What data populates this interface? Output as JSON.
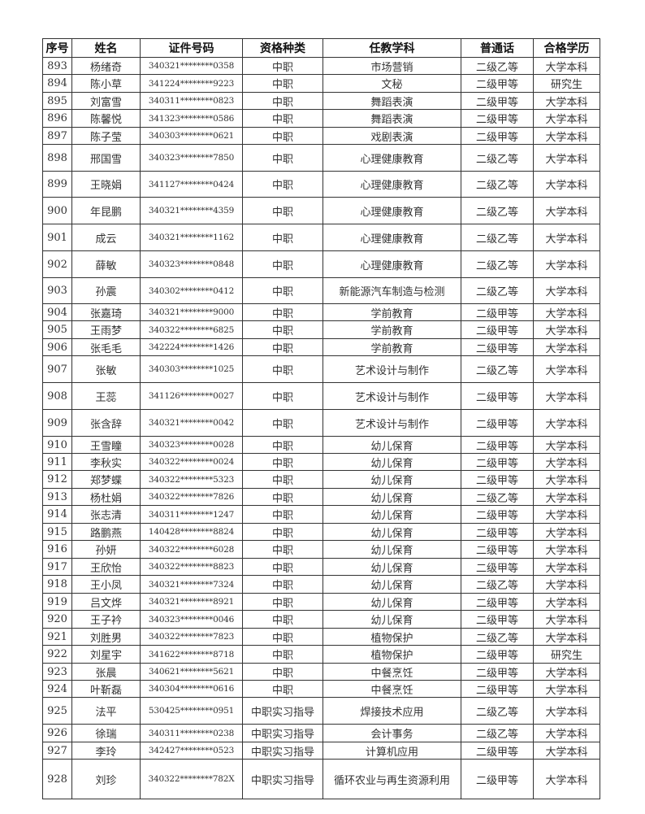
{
  "headers": [
    "序号",
    "姓名",
    "证件号码",
    "资格种类",
    "任教学科",
    "普通话",
    "合格学历"
  ],
  "rows": [
    [
      "893",
      "杨绪奇",
      "340321********0358",
      "中职",
      "市场营销",
      "二级乙等",
      "大学本科"
    ],
    [
      "894",
      "陈小草",
      "341224********9223",
      "中职",
      "文秘",
      "二级甲等",
      "研究生"
    ],
    [
      "895",
      "刘富雪",
      "340311********0823",
      "中职",
      "舞蹈表演",
      "二级甲等",
      "大学本科"
    ],
    [
      "896",
      "陈馨悦",
      "341323********0586",
      "中职",
      "舞蹈表演",
      "二级甲等",
      "大学本科"
    ],
    [
      "897",
      "陈子莹",
      "340303********0621",
      "中职",
      "戏剧表演",
      "二级甲等",
      "大学本科"
    ],
    [
      "898",
      "邢国雪",
      "340323********7850",
      "中职",
      "心理健康教育",
      "二级乙等",
      "大学本科"
    ],
    [
      "899",
      "王晓娟",
      "341127********0424",
      "中职",
      "心理健康教育",
      "二级乙等",
      "大学本科"
    ],
    [
      "900",
      "年昆鹏",
      "340321********4359",
      "中职",
      "心理健康教育",
      "二级乙等",
      "大学本科"
    ],
    [
      "901",
      "成云",
      "340321********1162",
      "中职",
      "心理健康教育",
      "二级乙等",
      "大学本科"
    ],
    [
      "902",
      "薛敏",
      "340323********0848",
      "中职",
      "心理健康教育",
      "二级乙等",
      "大学本科"
    ],
    [
      "903",
      "孙震",
      "340302********0412",
      "中职",
      "新能源汽车制造与检测",
      "二级乙等",
      "大学本科"
    ],
    [
      "904",
      "张嘉琦",
      "340321********9000",
      "中职",
      "学前教育",
      "二级甲等",
      "大学本科"
    ],
    [
      "905",
      "王雨梦",
      "340322********6825",
      "中职",
      "学前教育",
      "二级甲等",
      "大学本科"
    ],
    [
      "906",
      "张毛毛",
      "342224********1426",
      "中职",
      "学前教育",
      "二级甲等",
      "大学本科"
    ],
    [
      "907",
      "张敏",
      "340303********1025",
      "中职",
      "艺术设计与制作",
      "二级乙等",
      "大学本科"
    ],
    [
      "908",
      "王蕊",
      "341126********0027",
      "中职",
      "艺术设计与制作",
      "二级甲等",
      "大学本科"
    ],
    [
      "909",
      "张含辞",
      "340321********0042",
      "中职",
      "艺术设计与制作",
      "二级甲等",
      "大学本科"
    ],
    [
      "910",
      "王雪瞳",
      "340323********0028",
      "中职",
      "幼儿保育",
      "二级甲等",
      "大学本科"
    ],
    [
      "911",
      "李秋实",
      "340322********0024",
      "中职",
      "幼儿保育",
      "二级甲等",
      "大学本科"
    ],
    [
      "912",
      "郑梦蝶",
      "340322********5323",
      "中职",
      "幼儿保育",
      "二级甲等",
      "大学本科"
    ],
    [
      "913",
      "杨杜娟",
      "340322********7826",
      "中职",
      "幼儿保育",
      "二级乙等",
      "大学本科"
    ],
    [
      "914",
      "张志清",
      "340311********1247",
      "中职",
      "幼儿保育",
      "二级甲等",
      "大学本科"
    ],
    [
      "915",
      "路鹏燕",
      "140428********8824",
      "中职",
      "幼儿保育",
      "二级甲等",
      "大学本科"
    ],
    [
      "916",
      "孙妍",
      "340322********6028",
      "中职",
      "幼儿保育",
      "二级甲等",
      "大学本科"
    ],
    [
      "917",
      "王欣怡",
      "340322********8823",
      "中职",
      "幼儿保育",
      "二级甲等",
      "大学本科"
    ],
    [
      "918",
      "王小凤",
      "340321********7324",
      "中职",
      "幼儿保育",
      "二级乙等",
      "大学本科"
    ],
    [
      "919",
      "吕文烨",
      "340321********8921",
      "中职",
      "幼儿保育",
      "二级甲等",
      "大学本科"
    ],
    [
      "920",
      "王子衿",
      "340323********0046",
      "中职",
      "幼儿保育",
      "二级甲等",
      "大学本科"
    ],
    [
      "921",
      "刘胜男",
      "340322********7823",
      "中职",
      "植物保护",
      "二级乙等",
      "大学本科"
    ],
    [
      "922",
      "刘星宇",
      "341622********8718",
      "中职",
      "植物保护",
      "二级甲等",
      "研究生"
    ],
    [
      "923",
      "张晨",
      "340621********5621",
      "中职",
      "中餐烹饪",
      "二级甲等",
      "大学本科"
    ],
    [
      "924",
      "叶靳磊",
      "340304********0616",
      "中职",
      "中餐烹饪",
      "二级甲等",
      "大学本科"
    ],
    [
      "925",
      "法平",
      "530425********0951",
      "中职实习指导",
      "焊接技术应用",
      "二级乙等",
      "大学本科"
    ],
    [
      "926",
      "徐瑞",
      "340311********0238",
      "中职实习指导",
      "会计事务",
      "二级乙等",
      "大学本科"
    ],
    [
      "927",
      "李玲",
      "342427********0523",
      "中职实习指导",
      "计算机应用",
      "二级甲等",
      "大学本科"
    ],
    [
      "928",
      "刘珍",
      "340322********782X",
      "中职实习指导",
      "循环农业与再生资源利用",
      "二级甲等",
      "大学本科"
    ]
  ]
}
